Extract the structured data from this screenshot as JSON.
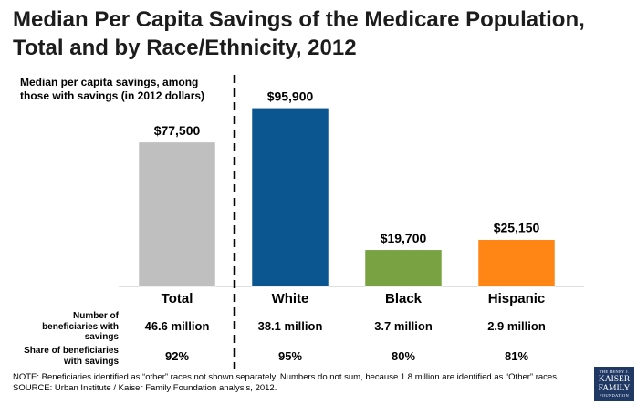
{
  "title_line1": "Median Per Capita Savings of the Medicare Population,",
  "title_line2": "Total and by Race/Ethnicity, 2012",
  "chart_data": {
    "type": "bar",
    "ylabel_line1": "Median per capita savings, among",
    "ylabel_line2": "those with savings (in 2012 dollars)",
    "categories": [
      "Total",
      "White",
      "Black",
      "Hispanic"
    ],
    "values": [
      77500,
      95900,
      19700,
      25150
    ],
    "value_labels": [
      "$77,500",
      "$95,900",
      "$19,700",
      "$25,150"
    ],
    "colors": [
      "#bfbfbf",
      "#0b5590",
      "#79a342",
      "#ff8515"
    ],
    "ylim": [
      0,
      100000
    ],
    "grid": false,
    "divider": "dashed line between Total and White"
  },
  "table": {
    "row1_label_line1": "Number of",
    "row1_label_line2": "beneficiaries with",
    "row1_label_line3": "savings",
    "row1_values": [
      "46.6 million",
      "38.1 million",
      "3.7 million",
      "2.9 million"
    ],
    "row2_label_line1": "Share of beneficiaries",
    "row2_label_line2": "with savings",
    "row2_values": [
      "92%",
      "95%",
      "80%",
      "81%"
    ]
  },
  "footnote_line1": "NOTE: Beneficiaries identified as “other” races not shown separately.  Numbers do not sum, because 1.8 million are identified as “Other” races.",
  "footnote_line2": "SOURCE: Urban Institute / Kaiser Family Foundation analysis, 2012.",
  "logo": {
    "line1": "THE HENRY J.",
    "line2": "KAISER",
    "line3": "FAMILY",
    "line4": "FOUNDATION"
  }
}
